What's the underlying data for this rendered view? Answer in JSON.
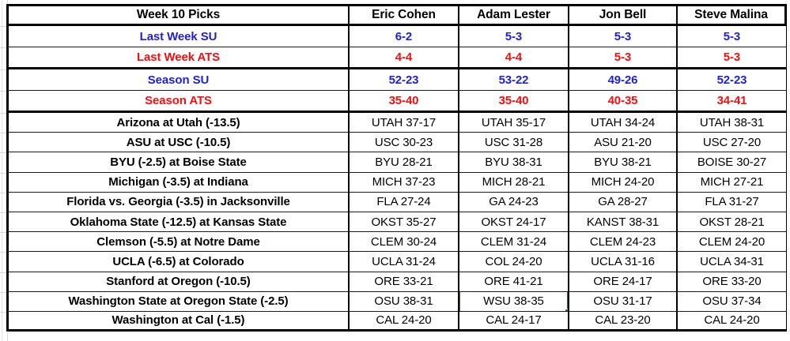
{
  "table": {
    "title": "Week 10 Picks",
    "columns": [
      "Eric Cohen",
      "Adam Lester",
      "Jon Bell",
      "Steve Malina"
    ],
    "stat_rows": [
      {
        "label": "Last Week SU",
        "color": "blue",
        "values": [
          "6-2",
          "5-3",
          "5-3",
          "5-3"
        ]
      },
      {
        "label": "Last Week ATS",
        "color": "red",
        "values": [
          "4-4",
          "4-4",
          "5-3",
          "5-3"
        ]
      },
      {
        "label": "Season SU",
        "color": "blue",
        "values": [
          "52-23",
          "53-22",
          "49-26",
          "52-23"
        ]
      },
      {
        "label": "Season ATS",
        "color": "red",
        "values": [
          "35-40",
          "35-40",
          "40-35",
          "34-41"
        ]
      }
    ],
    "game_rows": [
      {
        "game": "Arizona at Utah (-13.5)",
        "picks": [
          "UTAH 37-17",
          "UTAH 35-17",
          "UTAH 34-24",
          "UTAH 38-31"
        ]
      },
      {
        "game": "ASU at USC (-10.5)",
        "picks": [
          "USC 30-23",
          "USC 31-28",
          "ASU 21-20",
          "USC 27-20"
        ]
      },
      {
        "game": "BYU (-2.5) at Boise State",
        "picks": [
          "BYU 28-21",
          "BYU 38-31",
          "BYU 38-21",
          "BOISE 30-27"
        ]
      },
      {
        "game": "Michigan (-3.5) at Indiana",
        "picks": [
          "MICH 37-23",
          "MICH 28-21",
          "MICH 24-20",
          "MICH 27-21"
        ]
      },
      {
        "game": "Florida vs. Georgia (-3.5) in Jacksonville",
        "picks": [
          "FLA 27-24",
          "GA 24-23",
          "GA 28-27",
          "FLA 31-27"
        ]
      },
      {
        "game": "Oklahoma State (-12.5) at Kansas State",
        "picks": [
          "OKST 35-27",
          "OKST 24-17",
          "KANST 38-31",
          "OKST 28-21"
        ]
      },
      {
        "game": "Clemson (-5.5) at Notre Dame",
        "picks": [
          "CLEM 30-24",
          "CLEM 31-24",
          "CLEM 24-23",
          "CLEM 24-20"
        ]
      },
      {
        "game": "UCLA (-6.5) at Colorado",
        "picks": [
          "UCLA 31-24",
          "COL 24-20",
          "UCLA 31-16",
          "UCLA 34-31"
        ]
      },
      {
        "game": "Stanford at Oregon (-10.5)",
        "picks": [
          "ORE 33-21",
          "ORE 41-21",
          "ORE 24-17",
          "ORE 33-20"
        ]
      },
      {
        "game": "Washington State at Oregon State (-2.5)",
        "picks": [
          "OSU 38-31",
          "WSU 38-35",
          "OSU 31-17",
          "OSU 37-34"
        ]
      },
      {
        "game": "Washington at Cal (-1.5)",
        "picks": [
          "CAL 24-20",
          "CAL 24-17",
          "CAL 23-20",
          "CAL 24-20"
        ]
      }
    ],
    "selection": {
      "game_row_index": 9,
      "pick_col_index": 1,
      "value": "WSU 38-35"
    }
  },
  "colors": {
    "blue": "#2020DF",
    "red": "#F80D0D",
    "selection_green": "#217346"
  }
}
